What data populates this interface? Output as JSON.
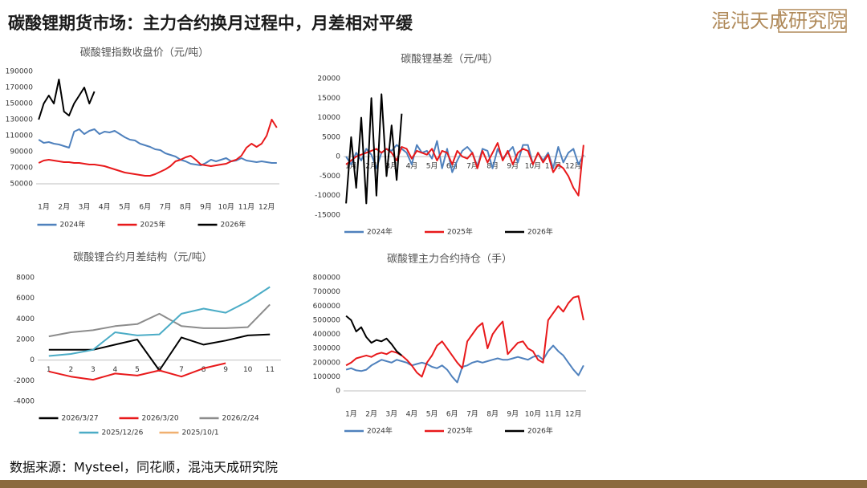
{
  "header": {
    "title": "碳酸锂期货市场：主力合约换月过程中，月差相对平缓",
    "logo": "混沌天成研究院"
  },
  "footer": {
    "source": "数据来源：Mysteel，同花顺，混沌天成研究院"
  },
  "chart_data": [
    {
      "type": "line",
      "title": "碳酸锂指数收盘价（元/吨）",
      "categories": [
        null,
        "1月",
        null,
        null,
        null,
        "2月",
        null,
        null,
        null,
        "3月",
        null,
        null,
        null,
        "4月",
        null,
        null,
        null,
        "5月",
        null,
        null,
        null,
        "6月",
        null,
        null,
        null,
        "7月",
        null,
        null,
        null,
        "8月",
        null,
        null,
        null,
        "9月",
        null,
        null,
        null,
        "10月",
        null,
        null,
        null,
        "11月",
        null,
        null,
        null,
        "12月",
        null,
        null
      ],
      "ylim": [
        50000,
        190000
      ],
      "yticks": [
        50000,
        70000,
        90000,
        110000,
        130000,
        150000,
        170000,
        190000
      ],
      "grid": false,
      "legend": "bottom",
      "series": [
        {
          "name": "2024年",
          "color": "#4f81bd",
          "values": [
            105000,
            101000,
            102000,
            100000,
            99000,
            97000,
            95000,
            115000,
            118000,
            112000,
            116000,
            118000,
            112000,
            115000,
            114000,
            116000,
            112000,
            108000,
            105000,
            104000,
            100000,
            98000,
            96000,
            93000,
            92000,
            88000,
            86000,
            84000,
            80000,
            78000,
            75000,
            74000,
            73000,
            76000,
            80000,
            78000,
            80000,
            82000,
            78000,
            79000,
            82000,
            79000,
            78000,
            77000,
            78000,
            77000,
            76000,
            76000
          ]
        },
        {
          "name": "2025年",
          "color": "#e8191b",
          "values": [
            76000,
            79000,
            80000,
            79000,
            78000,
            77000,
            77000,
            76000,
            76000,
            75000,
            74000,
            74000,
            73000,
            72000,
            70000,
            68000,
            66000,
            64000,
            63000,
            62000,
            61000,
            60000,
            60000,
            62000,
            65000,
            68000,
            72000,
            78000,
            80000,
            83000,
            85000,
            80000,
            74000,
            73000,
            72000,
            73000,
            74000,
            75000,
            78000,
            80000,
            85000,
            95000,
            100000,
            96000,
            100000,
            110000,
            130000,
            120000
          ]
        },
        {
          "name": "2026年",
          "color": "#000000",
          "values": [
            130000,
            150000,
            160000,
            150000,
            180000,
            140000,
            135000,
            150000,
            160000,
            170000,
            150000,
            165000,
            null,
            null,
            null,
            null,
            null,
            null,
            null,
            null,
            null,
            null,
            null,
            null,
            null,
            null,
            null,
            null,
            null,
            null,
            null,
            null,
            null,
            null,
            null,
            null,
            null,
            null,
            null,
            null,
            null,
            null,
            null,
            null,
            null,
            null,
            null,
            null
          ]
        }
      ]
    },
    {
      "type": "line",
      "title": "碳酸锂基差（元/吨）",
      "categories": [
        null,
        "1月",
        null,
        null,
        null,
        "2月",
        null,
        null,
        null,
        "3月",
        null,
        null,
        null,
        "4月",
        null,
        null,
        null,
        "5月",
        null,
        null,
        null,
        "6月",
        null,
        null,
        null,
        "7月",
        null,
        null,
        null,
        "8月",
        null,
        null,
        null,
        "9月",
        null,
        null,
        null,
        "10月",
        null,
        null,
        null,
        "11月",
        null,
        null,
        null,
        "12月",
        null,
        null
      ],
      "ylim": [
        -15000,
        20000
      ],
      "yticks": [
        -15000,
        -10000,
        -5000,
        0,
        5000,
        10000,
        15000,
        20000
      ],
      "grid": false,
      "legend": "bottom",
      "series": [
        {
          "name": "2024年",
          "color": "#4f81bd",
          "values": [
            0,
            -2000,
            1000,
            -1000,
            2000,
            500,
            -3000,
            1000,
            2000,
            1500,
            3000,
            2000,
            1000,
            -2000,
            3000,
            1000,
            1500,
            -500,
            4000,
            -3000,
            2000,
            -4000,
            -1000,
            1500,
            2500,
            1000,
            -2500,
            2000,
            1500,
            -3000,
            2000,
            -500,
            1000,
            2500,
            -1500,
            3000,
            3000,
            -2000,
            1000,
            -1000,
            1000,
            -3000,
            2500,
            -1500,
            1000,
            2000,
            -2000,
            500
          ]
        },
        {
          "name": "2025年",
          "color": "#e8191b",
          "values": [
            -2000,
            -1000,
            0,
            500,
            1000,
            1500,
            2000,
            1000,
            2000,
            1000,
            -1000,
            2500,
            2000,
            -500,
            1500,
            1000,
            500,
            2000,
            -1000,
            1500,
            1000,
            -2000,
            1500,
            0,
            -500,
            1000,
            -3000,
            1500,
            -1500,
            1000,
            3500,
            -1000,
            1500,
            -2000,
            1000,
            2000,
            1500,
            -2000,
            1000,
            -1500,
            500,
            -4000,
            -2000,
            -3000,
            -5000,
            -8000,
            -10000,
            3000
          ]
        },
        {
          "name": "2026年",
          "color": "#000000",
          "values": [
            -12000,
            5000,
            -8000,
            10000,
            -12000,
            15000,
            -10000,
            16000,
            -5000,
            8000,
            -6000,
            11000,
            null,
            null,
            null,
            null,
            null,
            null,
            null,
            null,
            null,
            null,
            null,
            null,
            null,
            null,
            null,
            null,
            null,
            null,
            null,
            null,
            null,
            null,
            null,
            null,
            null,
            null,
            null,
            null,
            null,
            null,
            null,
            null,
            null,
            null,
            null,
            null
          ]
        }
      ]
    },
    {
      "type": "line",
      "title": "碳酸锂合约月差结构（元/吨）",
      "categories": [
        "1",
        "2",
        "3",
        "4",
        "5",
        "6",
        "7",
        "8",
        "9",
        "10",
        "11"
      ],
      "ylim": [
        -4000,
        8000
      ],
      "yticks": [
        -4000,
        -2000,
        0,
        2000,
        4000,
        6000,
        8000
      ],
      "grid": false,
      "legend": "bottom",
      "series": [
        {
          "name": "2026/3/27",
          "color": "#000000",
          "values": [
            1000,
            1000,
            1000,
            1500,
            2000,
            -1000,
            2200,
            1500,
            1900,
            2400,
            2500
          ]
        },
        {
          "name": "2026/3/20",
          "color": "#e8191b",
          "values": [
            -1100,
            -1600,
            -1900,
            -1300,
            -1500,
            -1000,
            -1600,
            -800,
            -300,
            null,
            null
          ]
        },
        {
          "name": "2026/2/24",
          "color": "#8c8c8c",
          "values": [
            2300,
            2700,
            2900,
            3300,
            3500,
            4500,
            3300,
            3100,
            3100,
            3200,
            5400
          ]
        },
        {
          "name": "2025/12/26",
          "color": "#4bacc6",
          "values": [
            400,
            600,
            1000,
            2700,
            2400,
            2500,
            4500,
            5000,
            4600,
            5700,
            7100
          ]
        },
        {
          "name": "2025/10/1",
          "color": "#f0b070",
          "values": [
            null,
            null,
            null,
            null,
            null,
            null,
            null,
            null,
            null,
            null,
            null
          ]
        }
      ]
    },
    {
      "type": "line",
      "title": "碳酸锂主力合约持仓（手）",
      "categories": [
        null,
        "1月",
        null,
        null,
        null,
        "2月",
        null,
        null,
        null,
        "3月",
        null,
        null,
        null,
        "4月",
        null,
        null,
        null,
        "5月",
        null,
        null,
        null,
        "6月",
        null,
        null,
        null,
        "7月",
        null,
        null,
        null,
        "8月",
        null,
        null,
        null,
        "9月",
        null,
        null,
        null,
        "10月",
        null,
        null,
        null,
        "11月",
        null,
        null,
        null,
        "12月",
        null,
        null
      ],
      "ylim": [
        0,
        800000
      ],
      "yticks": [
        0,
        100000,
        200000,
        300000,
        400000,
        500000,
        600000,
        700000,
        800000
      ],
      "grid": false,
      "legend": "bottom",
      "series": [
        {
          "name": "2024年",
          "color": "#4f81bd",
          "values": [
            150000,
            160000,
            145000,
            140000,
            150000,
            180000,
            200000,
            220000,
            210000,
            200000,
            220000,
            210000,
            200000,
            180000,
            190000,
            200000,
            190000,
            170000,
            160000,
            180000,
            150000,
            100000,
            60000,
            170000,
            180000,
            200000,
            210000,
            200000,
            210000,
            220000,
            230000,
            220000,
            220000,
            230000,
            240000,
            230000,
            220000,
            240000,
            250000,
            220000,
            280000,
            320000,
            280000,
            250000,
            200000,
            150000,
            110000,
            180000
          ]
        },
        {
          "name": "2025年",
          "color": "#e8191b",
          "values": [
            180000,
            200000,
            230000,
            240000,
            250000,
            240000,
            260000,
            270000,
            260000,
            280000,
            270000,
            250000,
            220000,
            180000,
            130000,
            100000,
            200000,
            250000,
            320000,
            350000,
            300000,
            250000,
            200000,
            160000,
            350000,
            400000,
            450000,
            480000,
            300000,
            400000,
            450000,
            490000,
            260000,
            300000,
            340000,
            350000,
            300000,
            280000,
            220000,
            200000,
            500000,
            550000,
            600000,
            560000,
            620000,
            660000,
            670000,
            500000
          ]
        },
        {
          "name": "2026年",
          "color": "#000000",
          "values": [
            530000,
            500000,
            420000,
            450000,
            380000,
            340000,
            360000,
            350000,
            370000,
            330000,
            280000,
            250000,
            null,
            null,
            null,
            null,
            null,
            null,
            null,
            null,
            null,
            null,
            null,
            null,
            null,
            null,
            null,
            null,
            null,
            null,
            null,
            null,
            null,
            null,
            null,
            null,
            null,
            null,
            null,
            null,
            null,
            null,
            null,
            null,
            null,
            null,
            null,
            null
          ]
        }
      ]
    }
  ]
}
